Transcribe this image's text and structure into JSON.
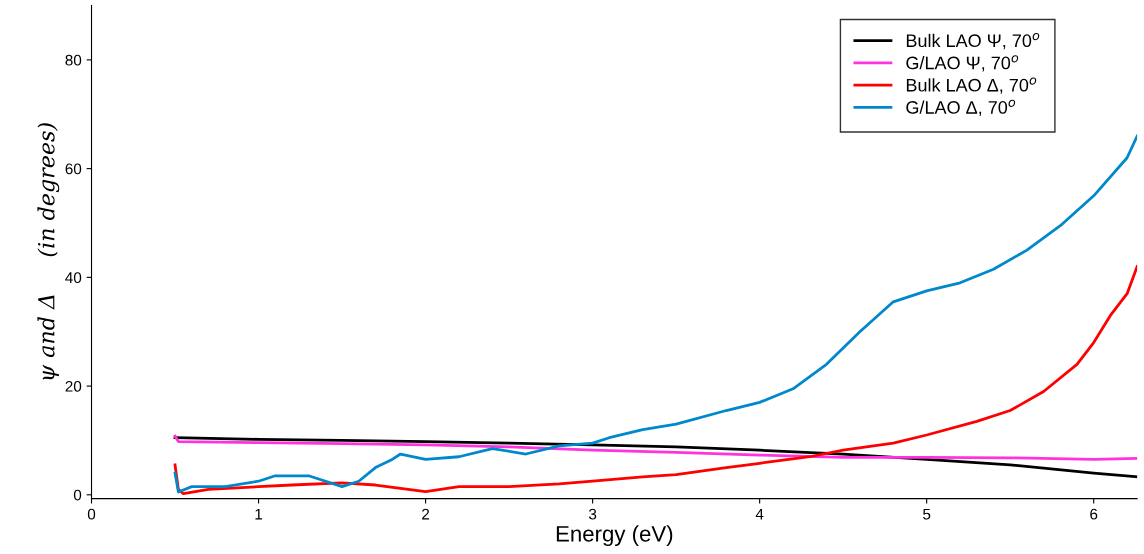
{
  "chart_data": {
    "type": "line",
    "xlabel": "Energy (eV)",
    "ylabel": "ψ and Δ     (in degrees)",
    "xlim": [
      0,
      6.26
    ],
    "ylim": [
      -0.7,
      90
    ],
    "xticks": [
      0,
      1,
      2,
      3,
      4,
      5,
      6
    ],
    "yticks": [
      0,
      20,
      40,
      60,
      80
    ],
    "grid": false,
    "legend": "top right",
    "line_style": "solid",
    "series": [
      {
        "name": "Bulk LAO Ψ, 70$^{o}$",
        "color": "#000000",
        "x": [
          0.5,
          1,
          1.5,
          2,
          2.5,
          3,
          3.5,
          4,
          4.5,
          5,
          5.5,
          6,
          6.26
        ],
        "values": [
          10.5,
          10.2,
          10.0,
          9.8,
          9.5,
          9.2,
          8.8,
          8.2,
          7.5,
          6.5,
          5.5,
          4.0,
          3.3
        ]
      },
      {
        "name": "G/LAO Ψ, 70$^{o}$",
        "color": "#ff33dd",
        "x": [
          0.5,
          0.52,
          1,
          1.5,
          2,
          2.5,
          3,
          3.5,
          4,
          4.5,
          5,
          5.5,
          6,
          6.26
        ],
        "values": [
          10.8,
          9.8,
          9.6,
          9.4,
          9.2,
          8.8,
          8.2,
          7.8,
          7.3,
          6.9,
          6.9,
          6.8,
          6.5,
          6.7
        ]
      },
      {
        "name": "Bulk LAO Δ, 70$^{o}$",
        "color": "#ff0000",
        "x": [
          0.5,
          0.52,
          0.55,
          0.7,
          1.0,
          1.2,
          1.5,
          1.7,
          2.0,
          2.2,
          2.5,
          2.8,
          3.0,
          3.3,
          3.5,
          3.8,
          4.0,
          4.3,
          4.5,
          4.8,
          5.0,
          5.3,
          5.5,
          5.7,
          5.9,
          6.0,
          6.1,
          6.2,
          6.26
        ],
        "values": [
          5.5,
          1,
          0.2,
          1.0,
          1.5,
          1.8,
          2.2,
          1.8,
          0.6,
          1.5,
          1.5,
          2.0,
          2.5,
          3.3,
          3.7,
          5.0,
          5.8,
          7.0,
          8.2,
          9.5,
          11,
          13.5,
          15.5,
          19,
          24,
          28,
          33,
          37,
          42
        ]
      },
      {
        "name": "G/LAO Δ, 70$^{o}$",
        "color": "#0088cc",
        "x": [
          0.5,
          0.52,
          0.6,
          0.8,
          1.0,
          1.1,
          1.3,
          1.5,
          1.6,
          1.7,
          1.8,
          1.85,
          2.0,
          2.2,
          2.4,
          2.6,
          2.8,
          3.0,
          3.1,
          3.3,
          3.5,
          3.8,
          4.0,
          4.2,
          4.4,
          4.6,
          4.8,
          5.0,
          5.2,
          5.4,
          5.6,
          5.8,
          6.0,
          6.2,
          6.26
        ],
        "values": [
          4,
          0.5,
          1.5,
          1.5,
          2.5,
          3.5,
          3.5,
          1.5,
          2.5,
          5,
          6.5,
          7.5,
          6.5,
          7,
          8.5,
          7.5,
          9,
          9.5,
          10.5,
          12,
          13,
          15.5,
          17,
          19.5,
          24,
          30,
          35.5,
          37.5,
          39,
          41.5,
          45,
          49.5,
          55,
          62,
          66
        ]
      }
    ]
  }
}
